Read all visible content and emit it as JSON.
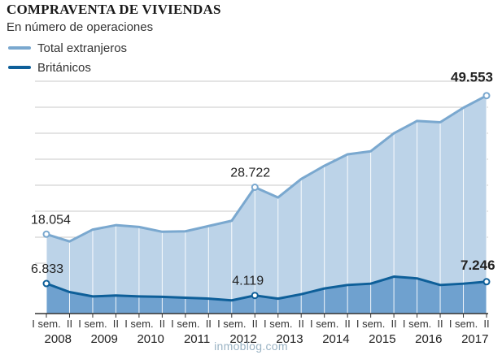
{
  "header": {
    "title": "COMPRAVENTA DE VIVIENDAS",
    "subtitle": "En número de operaciones"
  },
  "watermark": "inmoblog.com",
  "colors": {
    "total": "#7aa8cf",
    "total_fill": "#bcd3e8",
    "britanicos": "#0e5f99",
    "britanicos_fill": "#6fa1cf",
    "grid": "#c9c9c9"
  },
  "chart_data": {
    "type": "area",
    "x": [
      "I sem. 2008",
      "II sem. 2008",
      "I sem. 2009",
      "II sem. 2009",
      "I sem. 2010",
      "II sem. 2010",
      "I sem. 2011",
      "II sem. 2011",
      "I sem. 2012",
      "II sem. 2012",
      "I sem. 2013",
      "II sem. 2013",
      "I sem. 2014",
      "II sem. 2014",
      "I sem. 2015",
      "II sem. 2015",
      "I sem. 2016",
      "II sem. 2016",
      "I sem. 2017",
      "II sem. 2017"
    ],
    "ylim": [
      0,
      58000
    ],
    "grid": true,
    "legend": "top-left",
    "series": [
      {
        "name": "Total extranjeros",
        "values": [
          18054,
          16400,
          19100,
          20100,
          19700,
          18600,
          18700,
          19900,
          21100,
          28722,
          26400,
          30600,
          33600,
          36200,
          36900,
          41000,
          43800,
          43500,
          46800,
          49553
        ]
      },
      {
        "name": "Británicos",
        "values": [
          6833,
          4900,
          3900,
          4100,
          3900,
          3800,
          3600,
          3400,
          3000,
          4119,
          3400,
          4400,
          5700,
          6500,
          6800,
          8400,
          8000,
          6500,
          6800,
          7246
        ]
      }
    ],
    "annotations": [
      {
        "series": 0,
        "index": 0,
        "text": "18.054",
        "bold": false
      },
      {
        "series": 0,
        "index": 9,
        "text": "28.722",
        "bold": false
      },
      {
        "series": 0,
        "index": 19,
        "text": "49.553",
        "bold": true
      },
      {
        "series": 1,
        "index": 0,
        "text": "6.833",
        "bold": false
      },
      {
        "series": 1,
        "index": 9,
        "text": "4.119",
        "bold": false
      },
      {
        "series": 1,
        "index": 19,
        "text": "7.246",
        "bold": true
      }
    ],
    "x_ticks": {
      "first_half": "I sem.",
      "second_half": "II",
      "years": [
        "2008",
        "2009",
        "2010",
        "2011",
        "2012",
        "2013",
        "2014",
        "2015",
        "2016",
        "2017"
      ]
    }
  }
}
